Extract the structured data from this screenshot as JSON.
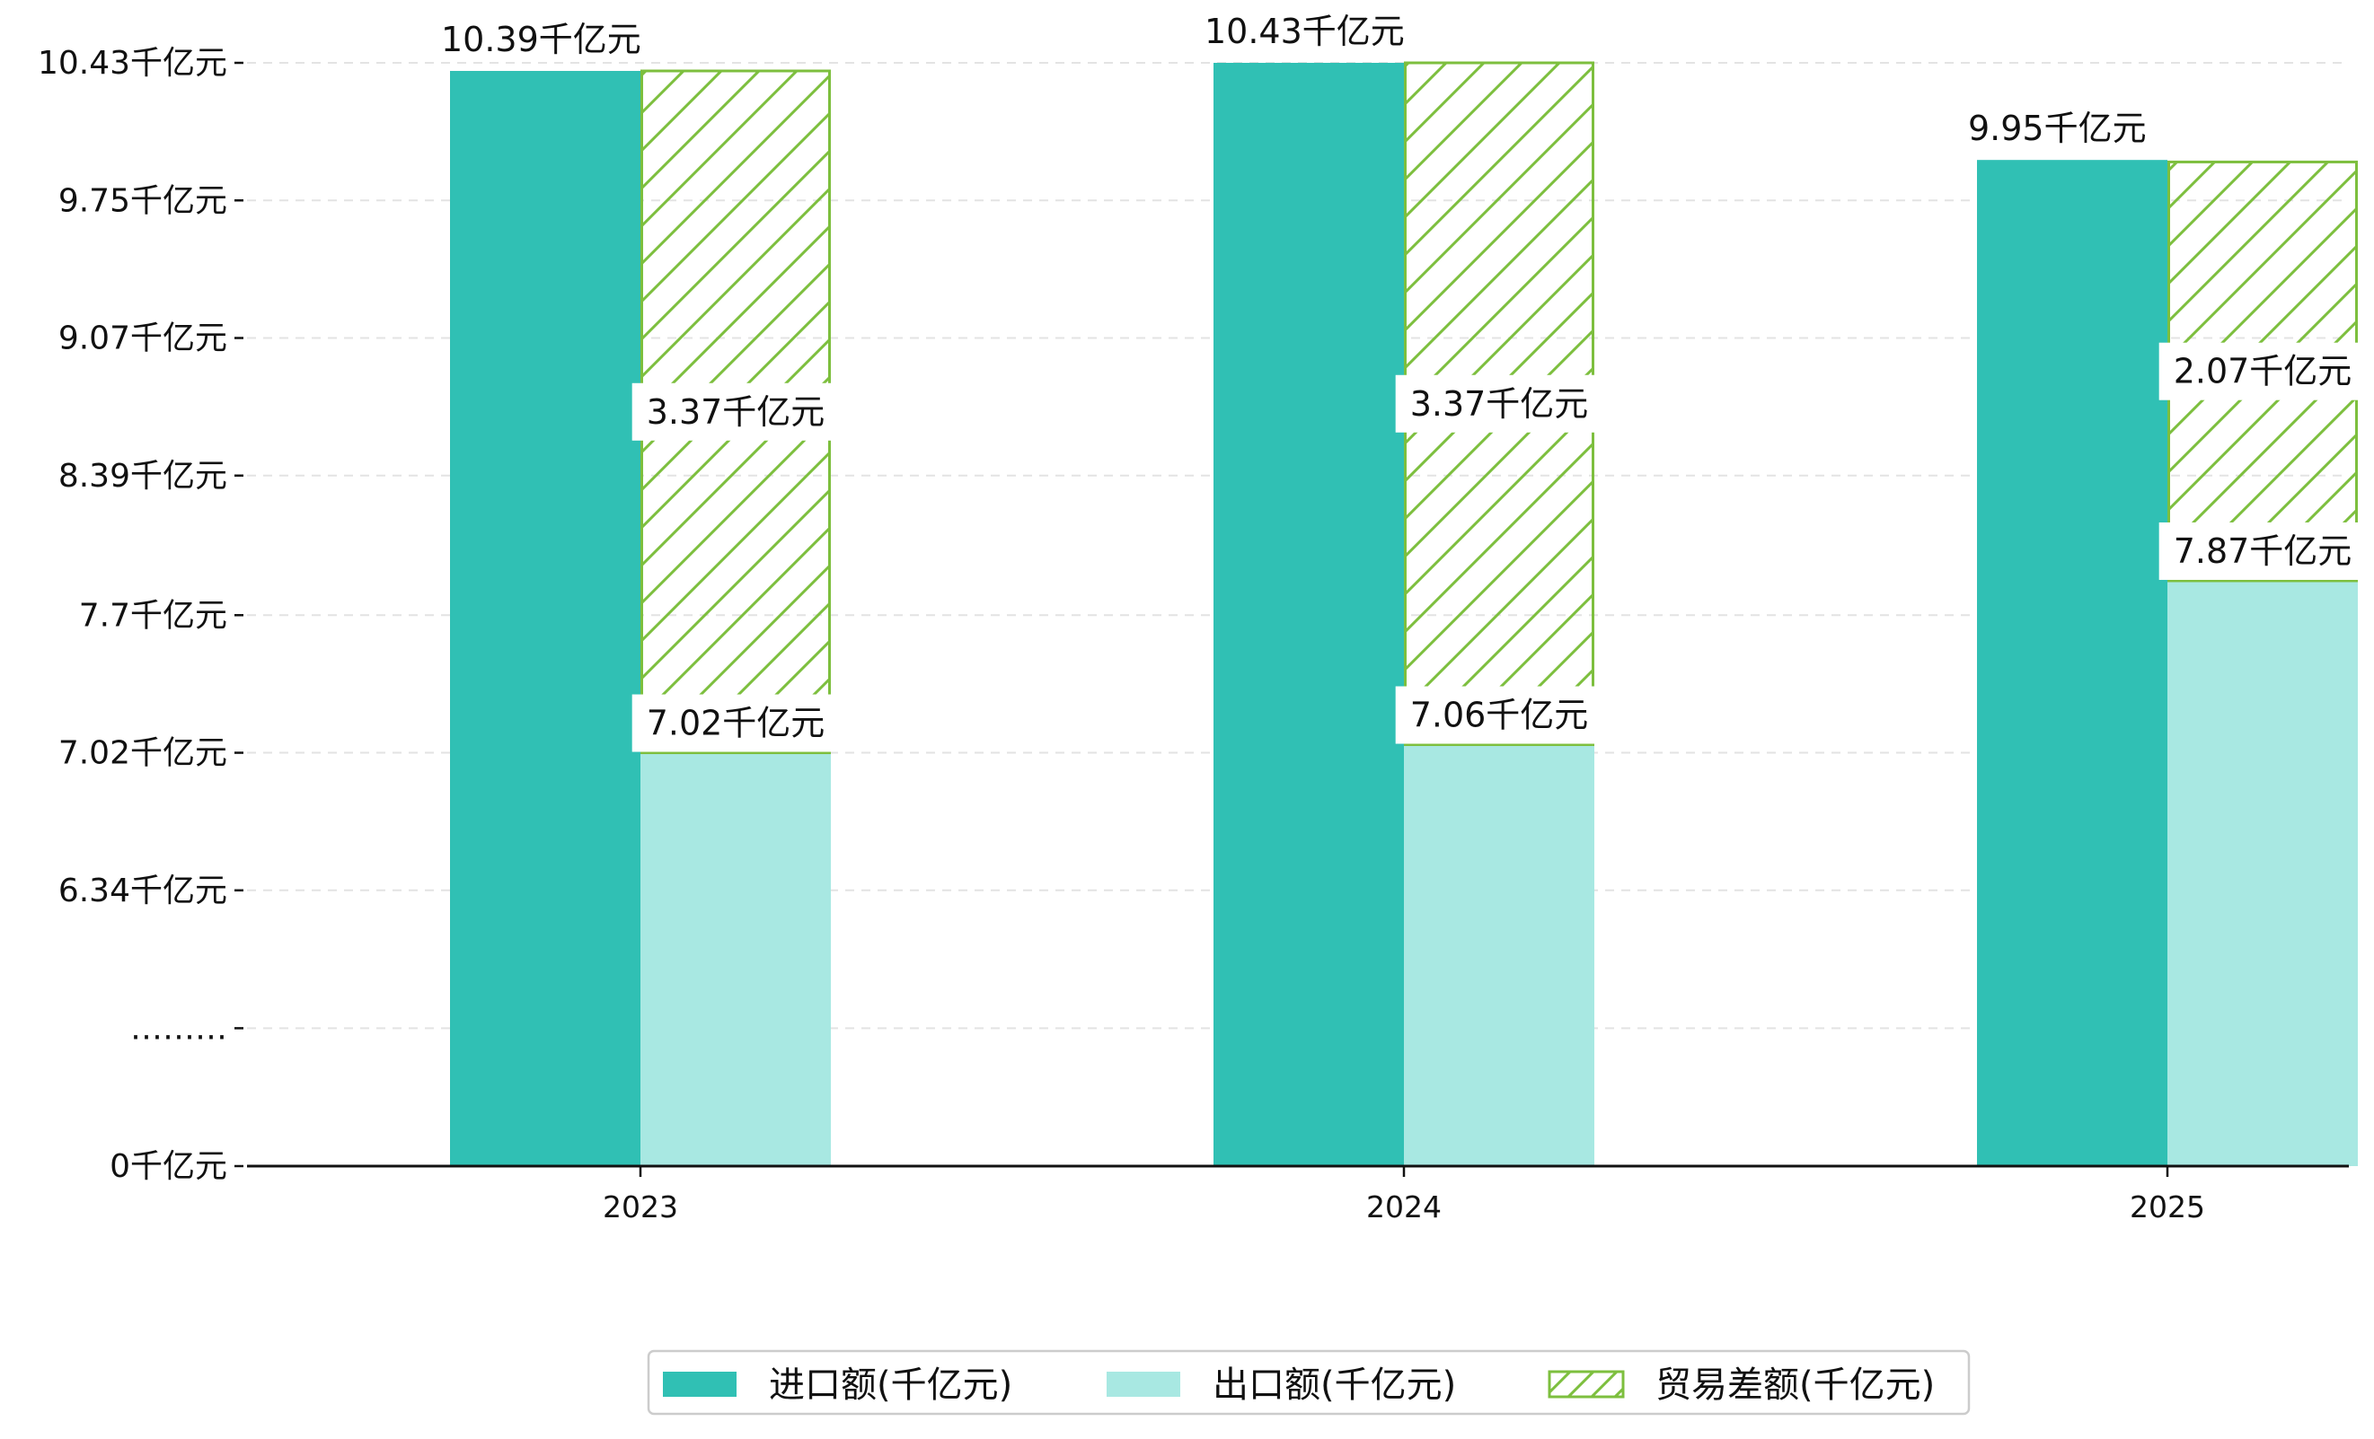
{
  "chart_data": {
    "type": "bar",
    "categories": [
      "2023",
      "2024",
      "2025"
    ],
    "series": [
      {
        "name": "进口额(千亿元)",
        "values": [
          10.39,
          10.43,
          9.95
        ],
        "color": "#30c0b4",
        "labels": [
          "10.39千亿元",
          "10.43千亿元",
          "9.95千亿元"
        ]
      },
      {
        "name": "出口额(千亿元)",
        "values": [
          7.02,
          7.06,
          7.87
        ],
        "color": "#a8e8e2",
        "labels": [
          "7.02千亿元",
          "7.06千亿元",
          "7.87千亿元"
        ]
      },
      {
        "name": "贸易差额(千亿元)",
        "values": [
          3.37,
          3.37,
          2.07
        ],
        "stacked_on": "出口额(千亿元)",
        "color": "#7dbf3e",
        "hatch": true,
        "labels": [
          "3.37千亿元",
          "3.37千亿元",
          "2.07千亿元"
        ]
      }
    ],
    "y_axis": {
      "broken": true,
      "ticks": [
        {
          "value": 0,
          "label": "0千亿元"
        },
        {
          "value": null,
          "label": "………"
        },
        {
          "value": 6.34,
          "label": "6.34千亿元"
        },
        {
          "value": 7.02,
          "label": "7.02千亿元"
        },
        {
          "value": 7.7,
          "label": "7.7千亿元"
        },
        {
          "value": 8.39,
          "label": "8.39千亿元"
        },
        {
          "value": 9.07,
          "label": "9.07千亿元"
        },
        {
          "value": 9.75,
          "label": "9.75千亿元"
        },
        {
          "value": 10.43,
          "label": "10.43千亿元"
        }
      ]
    },
    "grid": "horizontal-dashed",
    "legend_position": "bottom-center",
    "title": "",
    "xlabel": "",
    "ylabel": ""
  }
}
